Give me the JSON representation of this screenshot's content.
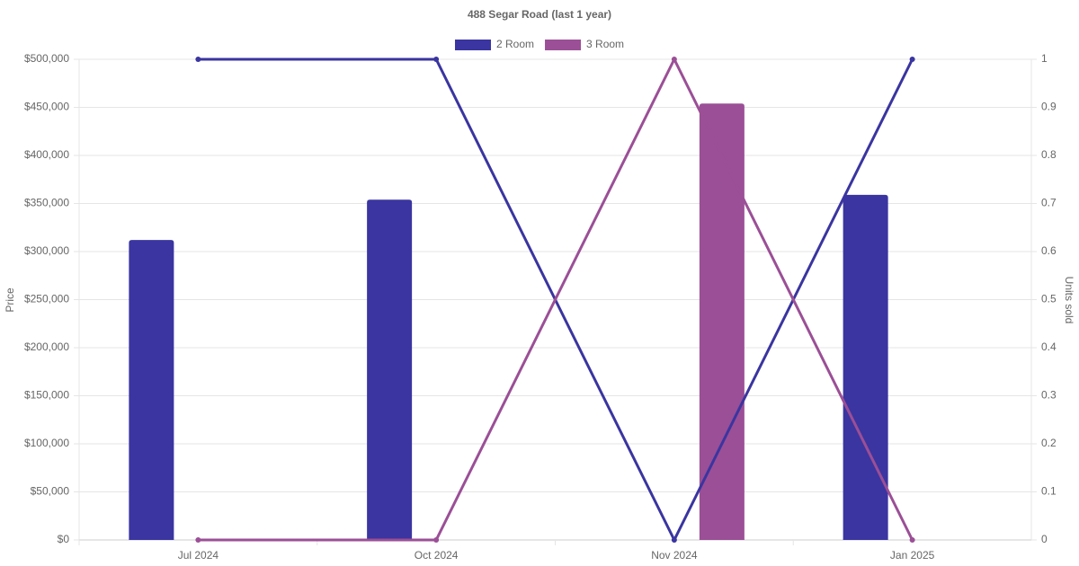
{
  "chart_data": {
    "type": "bar-line",
    "title": "488 Segar Road (last 1 year)",
    "y_label": "Price",
    "y2_label": "Units sold",
    "categories": [
      "Jul 2024",
      "Oct 2024",
      "Nov 2024",
      "Jan 2025"
    ],
    "series": [
      {
        "name": "2 Room",
        "color": "#3a35a0",
        "values": [
          312000,
          354000,
          null,
          359000
        ],
        "units_sold": [
          1,
          1,
          0,
          1
        ]
      },
      {
        "name": "3 Room",
        "color": "#9b4f96",
        "values": [
          null,
          null,
          454000,
          null
        ],
        "units_sold": [
          0,
          0,
          1,
          0
        ]
      }
    ],
    "ylim": [
      0,
      500000
    ],
    "yticks": [
      {
        "value": 0,
        "label": "$0"
      },
      {
        "value": 50000,
        "label": "$50,000"
      },
      {
        "value": 100000,
        "label": "$100,000"
      },
      {
        "value": 150000,
        "label": "$150,000"
      },
      {
        "value": 200000,
        "label": "$200,000"
      },
      {
        "value": 250000,
        "label": "$250,000"
      },
      {
        "value": 300000,
        "label": "$300,000"
      },
      {
        "value": 350000,
        "label": "$350,000"
      },
      {
        "value": 400000,
        "label": "$400,000"
      },
      {
        "value": 450000,
        "label": "$450,000"
      },
      {
        "value": 500000,
        "label": "$500,000"
      }
    ],
    "y2lim": [
      0,
      1
    ],
    "y2ticks": [
      0,
      0.1,
      0.2,
      0.3,
      0.4,
      0.5,
      0.6,
      0.7,
      0.8,
      0.9,
      1
    ],
    "grid": true
  }
}
